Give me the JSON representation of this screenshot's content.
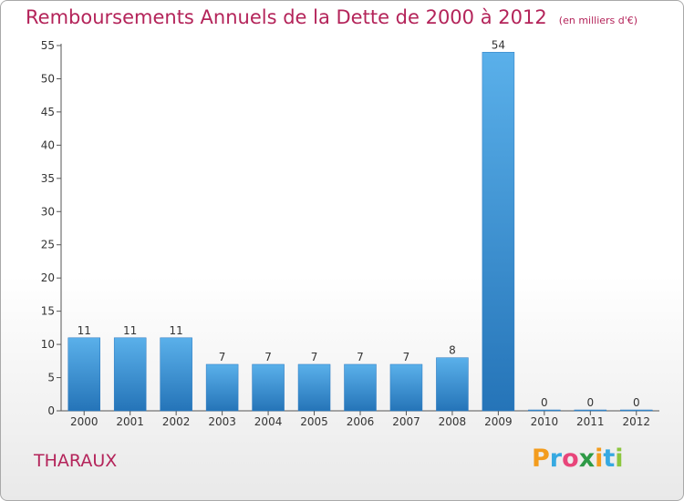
{
  "chart_data": {
    "type": "bar",
    "title": "Remboursements Annuels de la Dette de 2000 à 2012",
    "unit_note": "(en milliers d'€)",
    "categories": [
      "2000",
      "2001",
      "2002",
      "2003",
      "2004",
      "2005",
      "2006",
      "2007",
      "2008",
      "2009",
      "2010",
      "2011",
      "2012"
    ],
    "values": [
      11,
      11,
      11,
      7,
      7,
      7,
      7,
      7,
      8,
      54,
      0,
      0,
      0
    ],
    "data_labels": [
      "11",
      "11",
      "11",
      "7",
      "7",
      "7",
      "7",
      "7",
      "8",
      "54",
      "0",
      "0",
      "0"
    ],
    "ylim": [
      0,
      55
    ],
    "yticks": [
      0,
      5,
      10,
      15,
      20,
      25,
      30,
      35,
      40,
      45,
      50,
      55
    ],
    "grid": false,
    "xlabel": "",
    "ylabel": "",
    "bar_color": "#3a8fd6"
  },
  "footer": {
    "place": "THARAUX",
    "brand_letters": [
      {
        "char": "P",
        "color": "#f39c1d"
      },
      {
        "char": "r",
        "color": "#36a9e1"
      },
      {
        "char": "o",
        "color": "#e8457a"
      },
      {
        "char": "x",
        "color": "#2e9a46"
      },
      {
        "char": "i",
        "color": "#f39c1d"
      },
      {
        "char": "t",
        "color": "#36a9e1"
      },
      {
        "char": "i",
        "color": "#8cc63f"
      }
    ]
  },
  "colors": {
    "title": "#b4245a",
    "axis": "#555555"
  }
}
